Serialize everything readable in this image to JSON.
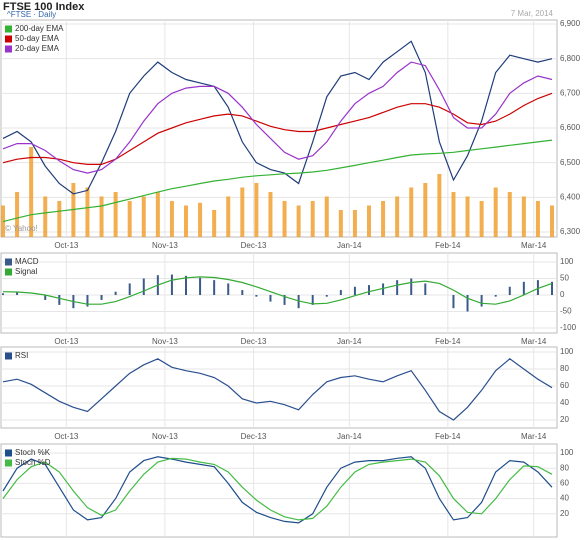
{
  "chart_data": [
    {
      "type": "line",
      "title": "FTSE 100 Index",
      "subtitle": "^FTSE · Daily",
      "date": "7 Mar, 2014",
      "source": "© Yahoo!",
      "xlim": [
        0,
        39
      ],
      "xticks": [
        {
          "value": 4.5,
          "label": "Oct-13"
        },
        {
          "value": 11.5,
          "label": "Nov-13"
        },
        {
          "value": 17.8,
          "label": "Dec-13"
        },
        {
          "value": 24.6,
          "label": "Jan-14"
        },
        {
          "value": 31.6,
          "label": "Feb-14"
        },
        {
          "value": 37.7,
          "label": "Mar-14"
        }
      ],
      "ylim": [
        6300,
        6900
      ],
      "yticks": [
        {
          "value": 6300,
          "label": "6,300"
        },
        {
          "value": 6400,
          "label": "6,400"
        },
        {
          "value": 6500,
          "label": "6,500"
        },
        {
          "value": 6600,
          "label": "6,600"
        },
        {
          "value": 6700,
          "label": "6,700"
        },
        {
          "value": 6800,
          "label": "6,800"
        },
        {
          "value": 6900,
          "label": "6,900"
        }
      ],
      "grid": true,
      "values": [
        6570,
        6590,
        6560,
        6490,
        6440,
        6410,
        6420,
        6500,
        6590,
        6700,
        6750,
        6790,
        6760,
        6740,
        6730,
        6720,
        6660,
        6560,
        6500,
        6480,
        6470,
        6440,
        6560,
        6690,
        6750,
        6760,
        6740,
        6790,
        6820,
        6850,
        6760,
        6560,
        6450,
        6520,
        6620,
        6760,
        6810,
        6800,
        6790,
        6800
      ],
      "color": "#1f3d7a",
      "volume": [
        35,
        50,
        100,
        45,
        40,
        60,
        55,
        45,
        50,
        40,
        45,
        50,
        40,
        35,
        38,
        30,
        45,
        55,
        60,
        50,
        40,
        35,
        40,
        45,
        30,
        30,
        35,
        40,
        45,
        55,
        60,
        70,
        50,
        45,
        40,
        55,
        50,
        45,
        40,
        35
      ],
      "volume_color": "#f0a030",
      "series": [
        {
          "name": "200-day EMA",
          "color": "#33b233",
          "style": "line",
          "values": [
            6330,
            6340,
            6350,
            6355,
            6360,
            6365,
            6370,
            6375,
            6385,
            6395,
            6405,
            6415,
            6425,
            6432,
            6440,
            6447,
            6452,
            6458,
            6462,
            6465,
            6468,
            6470,
            6473,
            6478,
            6485,
            6492,
            6500,
            6507,
            6515,
            6522,
            6525,
            6527,
            6530,
            6535,
            6540,
            6545,
            6550,
            6555,
            6560,
            6565
          ]
        },
        {
          "name": "50-day EMA",
          "color": "#cc0000",
          "style": "line",
          "values": [
            6500,
            6510,
            6515,
            6515,
            6510,
            6500,
            6495,
            6495,
            6510,
            6535,
            6560,
            6585,
            6600,
            6615,
            6625,
            6635,
            6640,
            6635,
            6620,
            6605,
            6595,
            6590,
            6590,
            6600,
            6610,
            6620,
            6630,
            6645,
            6660,
            6670,
            6670,
            6660,
            6640,
            6615,
            6610,
            6620,
            6640,
            6665,
            6685,
            6700
          ]
        },
        {
          "name": "20-day EMA",
          "color": "#9933cc",
          "style": "line",
          "values": [
            6540,
            6555,
            6555,
            6535,
            6505,
            6480,
            6470,
            6480,
            6510,
            6560,
            6620,
            6670,
            6700,
            6715,
            6720,
            6720,
            6700,
            6660,
            6610,
            6570,
            6530,
            6510,
            6520,
            6560,
            6620,
            6670,
            6700,
            6720,
            6760,
            6790,
            6780,
            6710,
            6630,
            6600,
            6600,
            6640,
            6700,
            6730,
            6750,
            6740
          ]
        }
      ]
    },
    {
      "type": "combo",
      "xlim": [
        0,
        39
      ],
      "xticks": [
        {
          "value": 4.5,
          "label": "Oct-13"
        },
        {
          "value": 11.5,
          "label": "Nov-13"
        },
        {
          "value": 17.8,
          "label": "Dec-13"
        },
        {
          "value": 24.6,
          "label": "Jan-14"
        },
        {
          "value": 31.6,
          "label": "Feb-14"
        },
        {
          "value": 37.7,
          "label": "Mar-14"
        }
      ],
      "ylim": [
        -100,
        100
      ],
      "yticks": [
        -100,
        -50,
        0,
        50,
        100
      ],
      "grid": true,
      "series": [
        {
          "name": "MACD",
          "color": "#3a5a8a",
          "style": "bar",
          "values": [
            5,
            8,
            0,
            -15,
            -30,
            -40,
            -35,
            -15,
            10,
            35,
            50,
            60,
            62,
            58,
            52,
            45,
            35,
            15,
            -5,
            -20,
            -30,
            -40,
            -30,
            -5,
            15,
            25,
            30,
            35,
            45,
            50,
            35,
            0,
            -40,
            -50,
            -35,
            -5,
            25,
            40,
            45,
            40
          ]
        },
        {
          "name": "Signal",
          "color": "#33aa33",
          "style": "line",
          "values": [
            10,
            9,
            6,
            0,
            -10,
            -20,
            -28,
            -28,
            -20,
            -5,
            12,
            30,
            45,
            52,
            55,
            53,
            47,
            38,
            25,
            10,
            -5,
            -18,
            -27,
            -25,
            -15,
            -2,
            10,
            20,
            30,
            38,
            42,
            35,
            15,
            -10,
            -25,
            -28,
            -18,
            0,
            20,
            35
          ]
        }
      ]
    },
    {
      "type": "line",
      "xlim": [
        0,
        39
      ],
      "xticks": [
        {
          "value": 4.5,
          "label": "Oct-13"
        },
        {
          "value": 11.5,
          "label": "Nov-13"
        },
        {
          "value": 17.8,
          "label": "Dec-13"
        },
        {
          "value": 24.6,
          "label": "Jan-14"
        },
        {
          "value": 31.6,
          "label": "Feb-14"
        },
        {
          "value": 37.7,
          "label": "Mar-14"
        }
      ],
      "ylim": [
        20,
        100
      ],
      "yticks": [
        20,
        40,
        60,
        80,
        100
      ],
      "grid": true,
      "series": [
        {
          "name": "RSI",
          "color": "#2a4f8f",
          "style": "line",
          "values": [
            65,
            68,
            62,
            52,
            42,
            35,
            30,
            45,
            60,
            75,
            85,
            92,
            82,
            78,
            75,
            70,
            60,
            45,
            40,
            42,
            38,
            32,
            50,
            65,
            70,
            72,
            68,
            65,
            72,
            78,
            55,
            30,
            20,
            35,
            55,
            78,
            92,
            80,
            68,
            58
          ]
        }
      ]
    },
    {
      "type": "line",
      "xlim": [
        0,
        39
      ],
      "xticks": [
        {
          "value": 4.5,
          "label": "Oct-13"
        },
        {
          "value": 11.5,
          "label": "Nov-13"
        },
        {
          "value": 17.8,
          "label": "Dec-13"
        },
        {
          "value": 24.6,
          "label": "Jan-14"
        },
        {
          "value": 31.6,
          "label": "Feb-14"
        },
        {
          "value": 37.7,
          "label": "Mar-14"
        }
      ],
      "ylim": [
        0,
        100
      ],
      "yticks": [
        20,
        40,
        60,
        80,
        100
      ],
      "grid": true,
      "series": [
        {
          "name": "Stoch %K",
          "color": "#1f4e8c",
          "style": "line",
          "values": [
            50,
            80,
            92,
            85,
            55,
            25,
            12,
            15,
            40,
            75,
            90,
            95,
            92,
            88,
            85,
            82,
            60,
            35,
            22,
            15,
            10,
            8,
            20,
            55,
            80,
            88,
            90,
            90,
            93,
            95,
            80,
            40,
            12,
            15,
            35,
            75,
            90,
            88,
            75,
            55
          ]
        },
        {
          "name": "Stoch %D",
          "color": "#44bb44",
          "style": "line",
          "values": [
            40,
            65,
            82,
            88,
            75,
            50,
            28,
            18,
            25,
            50,
            72,
            88,
            93,
            92,
            88,
            85,
            75,
            55,
            38,
            25,
            16,
            12,
            14,
            30,
            55,
            75,
            85,
            88,
            90,
            92,
            88,
            70,
            40,
            22,
            20,
            40,
            65,
            83,
            82,
            72
          ]
        }
      ]
    }
  ]
}
